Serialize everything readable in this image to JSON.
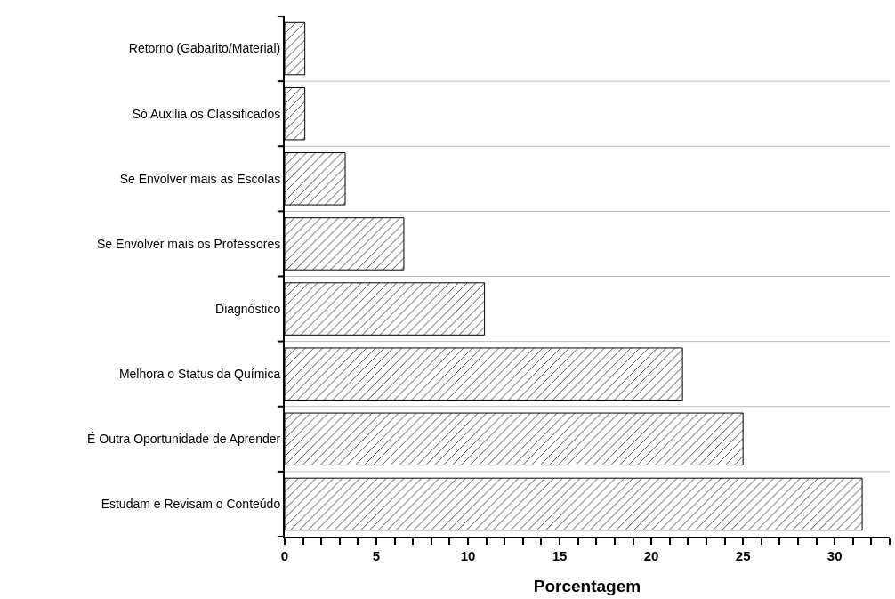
{
  "chart_data": {
    "type": "bar",
    "orientation": "horizontal",
    "xlabel": "Porcentagem",
    "categories": [
      "Retorno (Gabarito/Material)",
      "Só Auxilia os Classificados",
      "Se Envolver mais as Escolas",
      "Se Envolver mais os Professores",
      "Diagnóstico",
      "Melhora o Status da Química",
      "É Outra Oportunidade de Aprender",
      "Estudam e Revisam o Conteúdo"
    ],
    "values": [
      1.1,
      1.1,
      3.3,
      6.5,
      10.9,
      21.7,
      25.0,
      31.5
    ],
    "color": "#000000",
    "xlim": [
      0,
      33
    ],
    "xticks": [
      0,
      {
        "value": 1,
        "label": null
      },
      {
        "value": 2,
        "label": null
      },
      {
        "value": 3,
        "label": null
      },
      {
        "value": 4,
        "label": null
      },
      5,
      {
        "value": 6,
        "label": null
      },
      {
        "value": 7,
        "label": null
      },
      {
        "value": 8,
        "label": null
      },
      {
        "value": 9,
        "label": null
      },
      10,
      {
        "value": 11,
        "label": null
      },
      {
        "value": 12,
        "label": null
      },
      {
        "value": 13,
        "label": null
      },
      {
        "value": 14,
        "label": null
      },
      15,
      {
        "value": 16,
        "label": null
      },
      {
        "value": 17,
        "label": null
      },
      {
        "value": 18,
        "label": null
      },
      {
        "value": 19,
        "label": null
      },
      20,
      {
        "value": 21,
        "label": null
      },
      {
        "value": 22,
        "label": null
      },
      {
        "value": 23,
        "label": null
      },
      {
        "value": 24,
        "label": null
      },
      25,
      {
        "value": 26,
        "label": null
      },
      {
        "value": 27,
        "label": null
      },
      {
        "value": 28,
        "label": null
      },
      {
        "value": 29,
        "label": null
      },
      30,
      {
        "value": 31,
        "label": null
      },
      {
        "value": 32,
        "label": null
      },
      {
        "value": 33,
        "label": null
      }
    ],
    "grid": "y",
    "legend": false
  }
}
